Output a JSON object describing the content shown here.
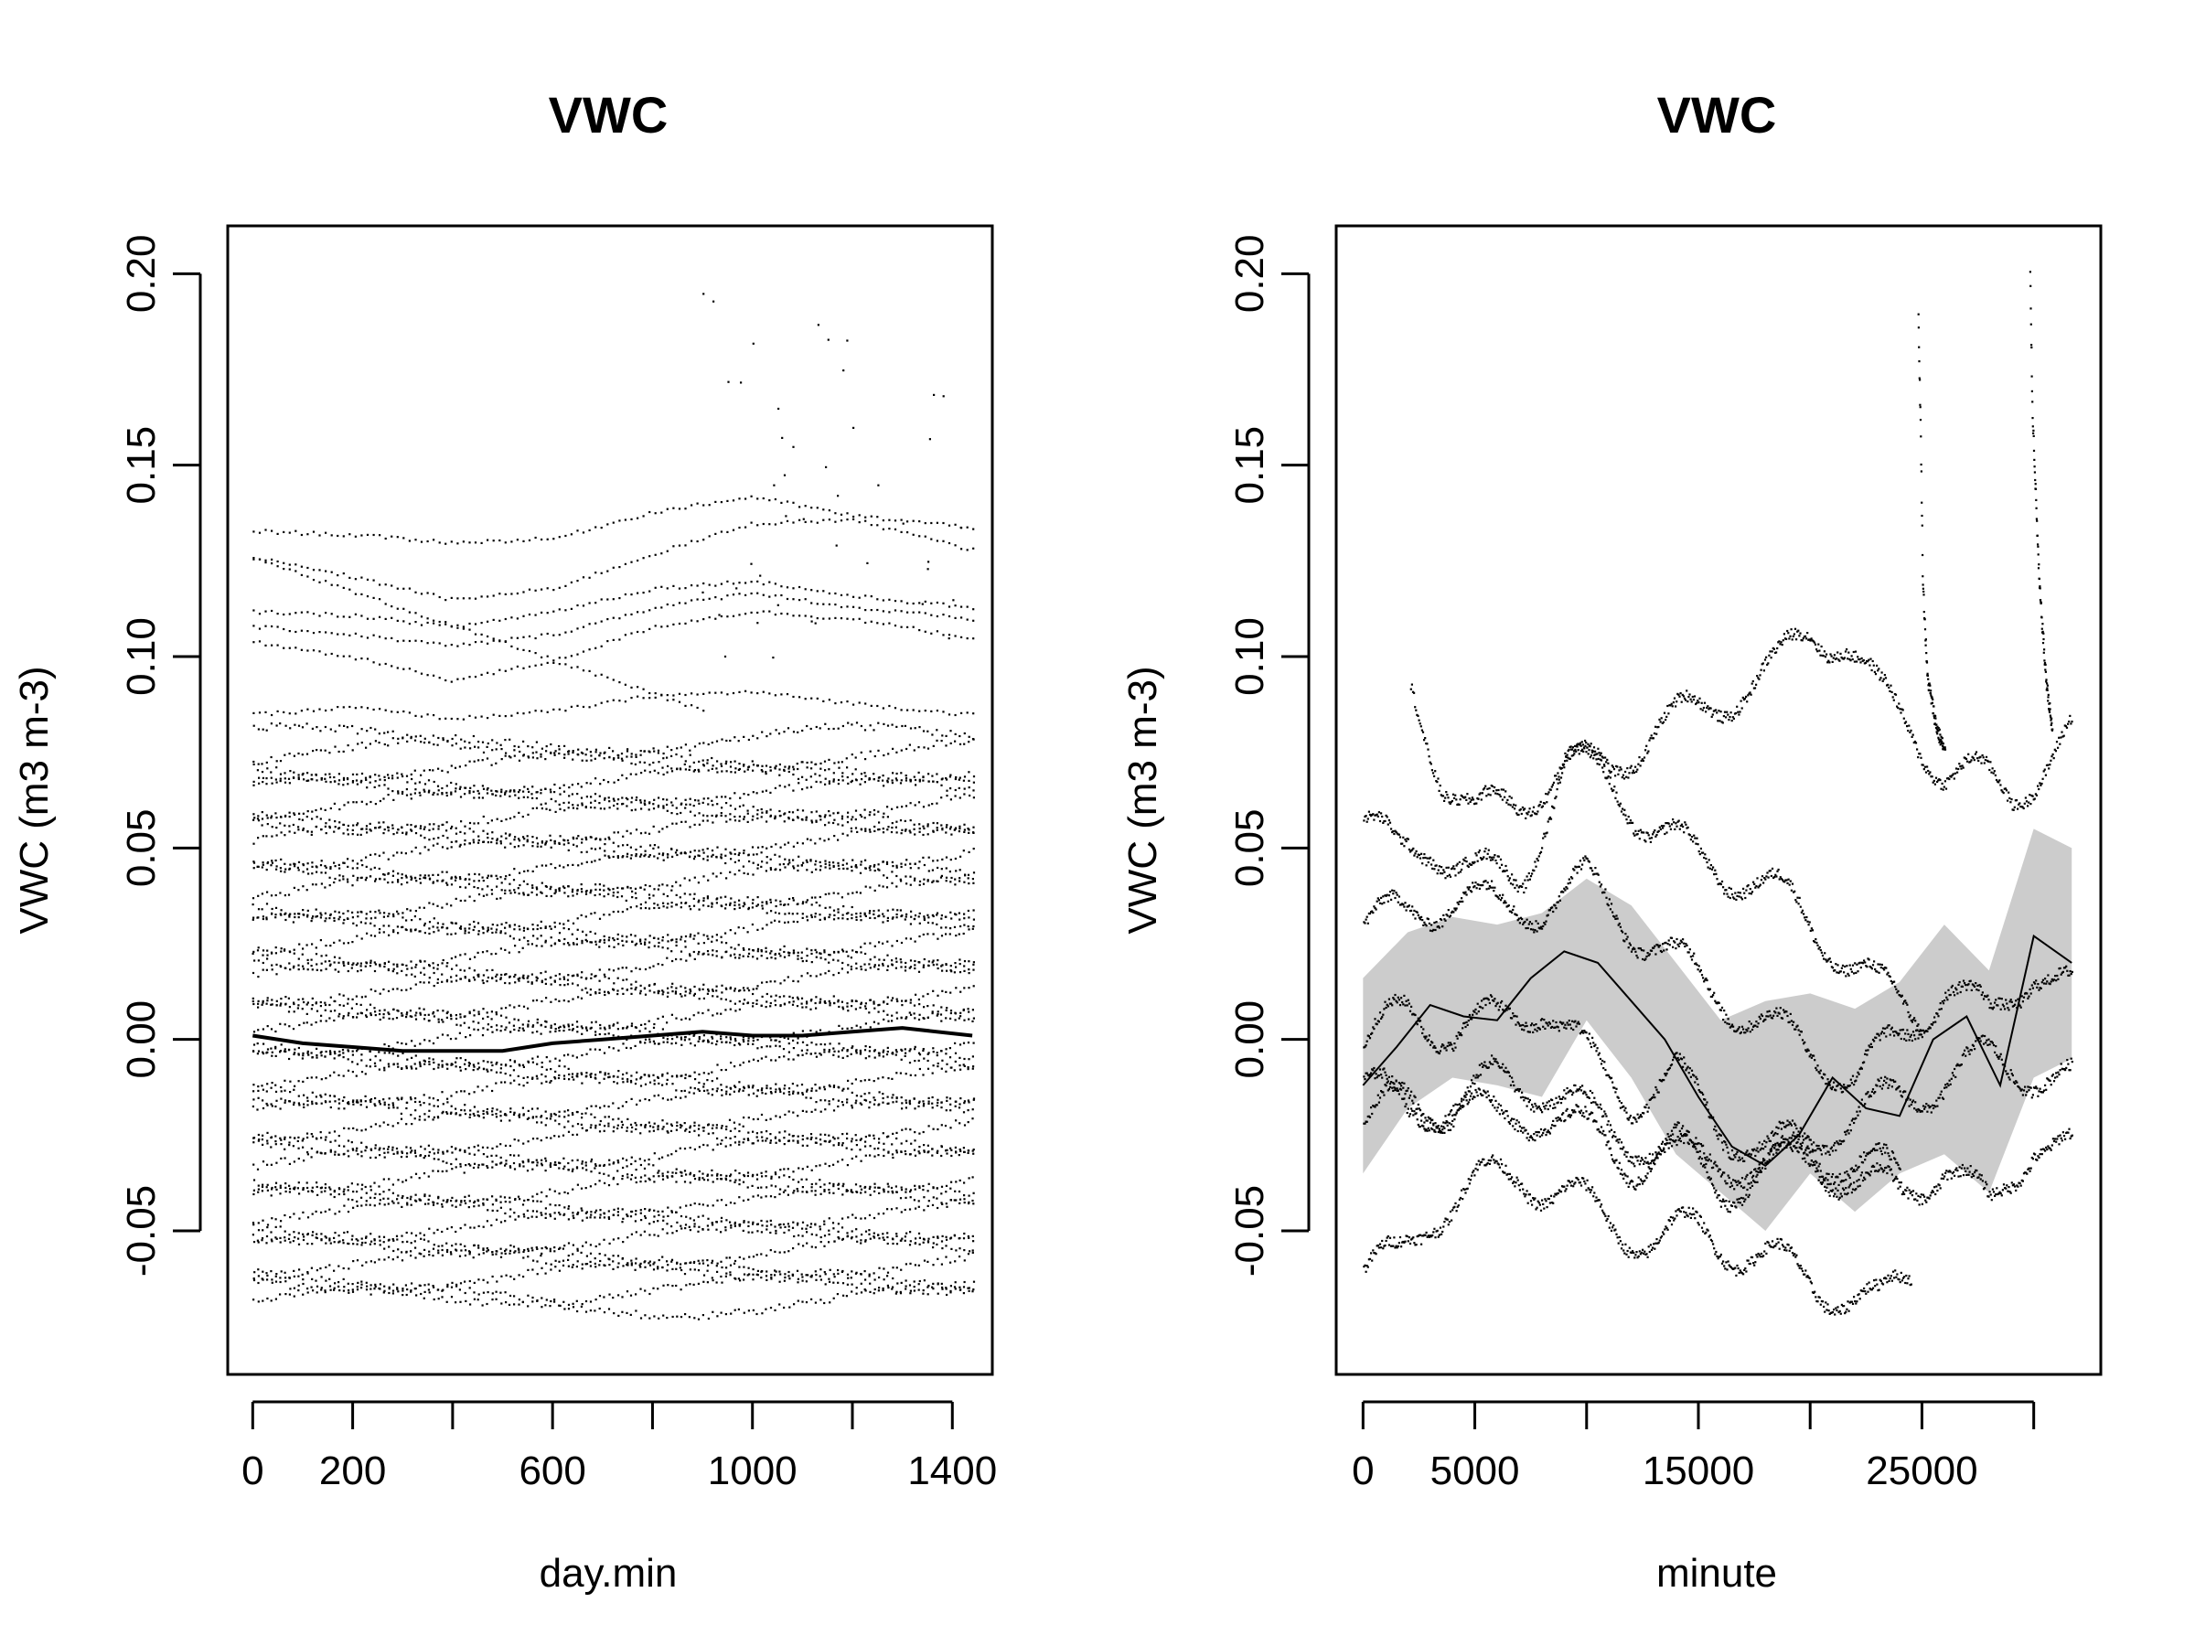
{
  "chart_data": [
    {
      "type": "scatter",
      "title": "VWC",
      "xlabel": "day.min",
      "ylabel": "VWC (m3 m-3)",
      "xlim": [
        -50,
        1480
      ],
      "ylim": [
        -0.0875,
        0.2125
      ],
      "xticks": [
        0,
        200,
        400,
        600,
        800,
        1000,
        1200,
        1400
      ],
      "xtick_labels": [
        "0",
        "200",
        "",
        "600",
        "",
        "1000",
        "",
        "1400"
      ],
      "yticks": [
        -0.05,
        0.0,
        0.05,
        0.1,
        0.15,
        0.2
      ],
      "ytick_labels": [
        "-0.05",
        "0.00",
        "0.05",
        "0.10",
        "0.15",
        "0.20"
      ],
      "grid": false,
      "point_color": "#000000",
      "series": [
        {
          "kind": "points",
          "note_points": "many daily profiles, each a dotted trace across day.min",
          "upper_traces": [
            {
              "x": [
                0,
                200,
                400,
                600,
                800,
                1000,
                1200,
                1440
              ],
              "y": [
                0.133,
                0.132,
                0.13,
                0.131,
                0.138,
                0.142,
                0.137,
                0.134
              ]
            },
            {
              "x": [
                0,
                200,
                400,
                600,
                800,
                1000,
                1200,
                1440
              ],
              "y": [
                0.126,
                0.121,
                0.115,
                0.118,
                0.127,
                0.135,
                0.136,
                0.128
              ]
            },
            {
              "x": [
                0,
                200,
                400,
                600,
                800,
                1000,
                1200,
                1440
              ],
              "y": [
                0.112,
                0.111,
                0.108,
                0.112,
                0.118,
                0.12,
                0.116,
                0.113
              ]
            },
            {
              "x": [
                0,
                200,
                400,
                600,
                800,
                1000,
                1200,
                1440
              ],
              "y": [
                0.108,
                0.106,
                0.103,
                0.106,
                0.113,
                0.117,
                0.113,
                0.11
              ]
            },
            {
              "x": [
                0,
                200,
                400,
                600,
                800,
                1000,
                1200,
                1440
              ],
              "y": [
                0.104,
                0.1,
                0.094,
                0.099,
                0.108,
                0.112,
                0.11,
                0.105
              ]
            },
            {
              "x": [
                0,
                200,
                400,
                600,
                800,
                1000,
                1200,
                1440
              ],
              "y": [
                0.085,
                0.087,
                0.084,
                0.086,
                0.09,
                0.091,
                0.088,
                0.085
              ]
            }
          ],
          "spike_points": {
            "x": [
              900,
              920,
              950,
              1000,
              1050,
              1080,
              1150,
              1180,
              1200,
              1250,
              1300,
              1350,
              1400
            ],
            "y": [
              0.195,
              0.193,
              0.172,
              0.182,
              0.165,
              0.155,
              0.183,
              0.175,
              0.16,
              0.145,
              0.135,
              0.125,
              0.115
            ]
          },
          "band_min": -0.068,
          "band_max": 0.078
        },
        {
          "kind": "smooth",
          "x": [
            0,
            100,
            200,
            300,
            400,
            500,
            600,
            700,
            800,
            900,
            1000,
            1100,
            1200,
            1300,
            1440
          ],
          "y": [
            0.001,
            -0.001,
            -0.002,
            -0.003,
            -0.003,
            -0.003,
            -0.001,
            0.0,
            0.001,
            0.002,
            0.001,
            0.001,
            0.002,
            0.003,
            0.001
          ]
        }
      ]
    },
    {
      "type": "scatter",
      "title": "VWC",
      "xlabel": "minute",
      "ylabel": "VWC (m3 m-3)",
      "xlim": [
        -1200,
        33000
      ],
      "ylim": [
        -0.0875,
        0.2125
      ],
      "xticks": [
        0,
        5000,
        10000,
        15000,
        20000,
        25000,
        30000
      ],
      "xtick_labels": [
        "0",
        "5000",
        "",
        "15000",
        "",
        "25000",
        ""
      ],
      "yticks": [
        -0.05,
        0.0,
        0.05,
        0.1,
        0.15,
        0.2
      ],
      "ytick_labels": [
        "-0.05",
        "0.00",
        "0.05",
        "0.10",
        "0.15",
        "0.20"
      ],
      "grid": false,
      "point_color": "#000000",
      "band_color": "#cccccc",
      "confidence_band": {
        "x": [
          0,
          2000,
          4000,
          6000,
          8000,
          10000,
          12000,
          14000,
          16000,
          18000,
          20000,
          22000,
          24000,
          26000,
          28000,
          30000,
          31700
        ],
        "lower": [
          -0.035,
          -0.018,
          -0.01,
          -0.012,
          -0.015,
          0.005,
          -0.01,
          -0.03,
          -0.04,
          -0.05,
          -0.035,
          -0.045,
          -0.035,
          -0.03,
          -0.04,
          -0.01,
          -0.005
        ],
        "upper": [
          0.016,
          0.028,
          0.032,
          0.03,
          0.033,
          0.042,
          0.035,
          0.02,
          0.005,
          0.01,
          0.012,
          0.008,
          0.015,
          0.03,
          0.018,
          0.055,
          0.05
        ]
      },
      "fit_line": {
        "x": [
          0,
          1500,
          3000,
          4500,
          6000,
          7500,
          9000,
          10500,
          12000,
          13500,
          15000,
          16500,
          18000,
          19500,
          21000,
          22500,
          24000,
          25500,
          27000,
          28500,
          30000,
          31700
        ],
        "y": [
          -0.012,
          -0.002,
          0.009,
          0.006,
          0.005,
          0.016,
          0.023,
          0.02,
          0.01,
          0.0,
          -0.015,
          -0.028,
          -0.033,
          -0.025,
          -0.01,
          -0.018,
          -0.02,
          0.0,
          0.006,
          -0.012,
          0.027,
          0.02
        ]
      },
      "sensor_traces": [
        {
          "x": [
            2100,
            3500,
            5000,
            7000,
            9000,
            11000,
            13000,
            15000,
            17000,
            18500,
            20000,
            21500,
            23000,
            24500,
            26000,
            27500,
            29000,
            31000,
            31700
          ],
          "y": [
            0.092,
            0.07,
            0.058,
            0.063,
            0.072,
            0.071,
            0.082,
            0.085,
            0.093,
            0.097,
            0.107,
            0.105,
            0.09,
            0.082,
            0.07,
            0.068,
            0.065,
            0.075,
            0.079
          ]
        },
        {
          "x": [
            0,
            1500,
            3000,
            5000,
            7000,
            9000,
            11000,
            13000,
            15000,
            17000,
            19000,
            21000,
            23000,
            25000
          ],
          "y": [
            0.058,
            0.048,
            0.052,
            0.043,
            0.042,
            0.072,
            0.068,
            0.055,
            0.047,
            0.043,
            0.036,
            0.025,
            0.013,
            0.007
          ]
        },
        {
          "x": [
            0,
            2000,
            4000,
            6000,
            8000,
            10000,
            12000,
            14000,
            16000,
            18000,
            20000,
            22000,
            24000,
            26000,
            28000,
            30000,
            31700
          ],
          "y": [
            0.03,
            0.033,
            0.038,
            0.034,
            0.036,
            0.041,
            0.03,
            0.02,
            0.012,
            0.003,
            -0.002,
            -0.01,
            0.0,
            0.015,
            0.005,
            0.02,
            0.012
          ]
        },
        {
          "x": [
            0,
            2000,
            4000,
            6000,
            8000,
            10000,
            12000,
            14000,
            16000,
            18000,
            20000,
            22000,
            24000,
            26000,
            28000,
            30000,
            31700
          ],
          "y": [
            -0.002,
            0.008,
            0.002,
            0.005,
            0.01,
            -0.005,
            -0.015,
            -0.01,
            -0.022,
            -0.03,
            -0.025,
            -0.02,
            -0.015,
            -0.01,
            -0.005,
            -0.008,
            -0.012
          ]
        },
        {
          "x": [
            0,
            2000,
            4000,
            6000,
            8000,
            10000,
            12000,
            14000,
            16000,
            18000,
            20000,
            22000,
            24000
          ],
          "y": [
            -0.022,
            -0.015,
            -0.018,
            -0.01,
            -0.012,
            -0.02,
            -0.025,
            -0.032,
            -0.03,
            -0.035,
            -0.028,
            -0.033,
            -0.035
          ]
        },
        {
          "x": [
            0,
            2000,
            4000,
            6000,
            8000,
            10000,
            12000,
            14000,
            16000,
            18000,
            20000,
            22000,
            24000,
            26000,
            28000,
            30000,
            31700
          ],
          "y": [
            -0.01,
            -0.02,
            -0.015,
            -0.022,
            -0.018,
            -0.025,
            -0.032,
            -0.028,
            -0.038,
            -0.035,
            -0.03,
            -0.038,
            -0.04,
            -0.032,
            -0.045,
            -0.025,
            -0.03
          ]
        },
        {
          "x": [
            0,
            1500,
            3000,
            5000,
            7000,
            9000,
            11000,
            13000,
            15000,
            17000,
            19000,
            21000,
            23000,
            24500
          ],
          "y": [
            -0.06,
            -0.058,
            -0.045,
            -0.038,
            -0.035,
            -0.04,
            -0.048,
            -0.052,
            -0.05,
            -0.055,
            -0.06,
            -0.065,
            -0.07,
            -0.06
          ]
        }
      ],
      "spikes": [
        {
          "x": [
            24800,
            24900,
            25000,
            25200,
            25600,
            26000
          ],
          "y": [
            0.188,
            0.16,
            0.12,
            0.095,
            0.082,
            0.075
          ]
        },
        {
          "x": [
            29800,
            29900,
            30000,
            30200,
            30500,
            30800
          ],
          "y": [
            0.2,
            0.165,
            0.15,
            0.12,
            0.095,
            0.08
          ]
        }
      ]
    }
  ]
}
